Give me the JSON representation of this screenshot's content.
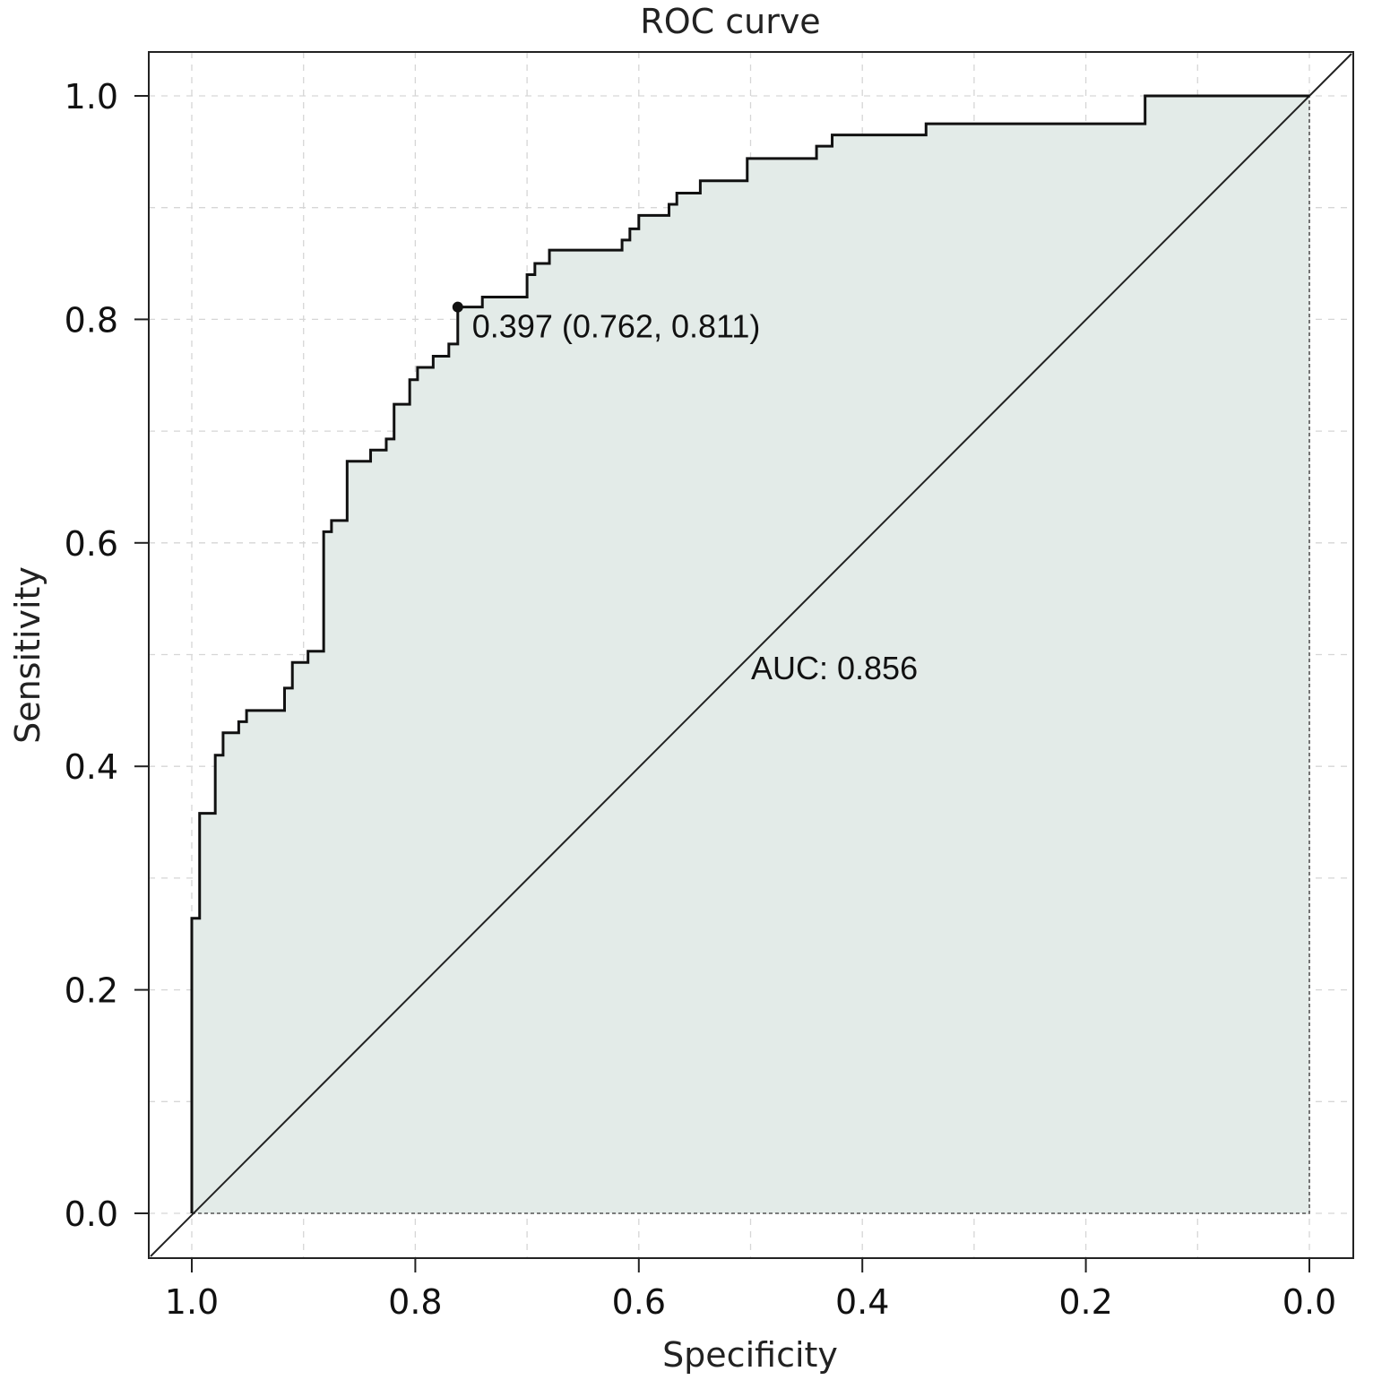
{
  "chart_data": {
    "type": "line",
    "title": "ROC curve",
    "xlabel": "Specificity",
    "ylabel": "Sensitivity",
    "xlim": [
      1.0,
      0.0
    ],
    "ylim": [
      0.0,
      1.0
    ],
    "x_reversed": true,
    "grid": true,
    "x_ticks": [
      "1.0",
      "0.8",
      "0.6",
      "0.4",
      "0.2",
      "0.0"
    ],
    "y_ticks": [
      "0.0",
      "0.2",
      "0.4",
      "0.6",
      "0.8",
      "1.0"
    ],
    "series": [
      {
        "points": [
          [
            1.0,
            0.0
          ],
          [
            1.0,
            0.264
          ],
          [
            0.993,
            0.264
          ],
          [
            0.993,
            0.358
          ],
          [
            0.979,
            0.358
          ],
          [
            0.979,
            0.41
          ],
          [
            0.972,
            0.41
          ],
          [
            0.972,
            0.43
          ],
          [
            0.958,
            0.43
          ],
          [
            0.958,
            0.44
          ],
          [
            0.951,
            0.44
          ],
          [
            0.951,
            0.45
          ],
          [
            0.917,
            0.45
          ],
          [
            0.917,
            0.47
          ],
          [
            0.91,
            0.47
          ],
          [
            0.91,
            0.493
          ],
          [
            0.896,
            0.493
          ],
          [
            0.896,
            0.503
          ],
          [
            0.882,
            0.503
          ],
          [
            0.882,
            0.61
          ],
          [
            0.875,
            0.61
          ],
          [
            0.875,
            0.62
          ],
          [
            0.861,
            0.62
          ],
          [
            0.861,
            0.673
          ],
          [
            0.84,
            0.673
          ],
          [
            0.84,
            0.683
          ],
          [
            0.826,
            0.683
          ],
          [
            0.826,
            0.693
          ],
          [
            0.819,
            0.693
          ],
          [
            0.819,
            0.724
          ],
          [
            0.805,
            0.724
          ],
          [
            0.805,
            0.746
          ],
          [
            0.798,
            0.746
          ],
          [
            0.798,
            0.757
          ],
          [
            0.784,
            0.757
          ],
          [
            0.784,
            0.767
          ],
          [
            0.77,
            0.767
          ],
          [
            0.77,
            0.778
          ],
          [
            0.762,
            0.778
          ],
          [
            0.762,
            0.811
          ],
          [
            0.74,
            0.811
          ],
          [
            0.74,
            0.82
          ],
          [
            0.7,
            0.82
          ],
          [
            0.7,
            0.84
          ],
          [
            0.693,
            0.84
          ],
          [
            0.693,
            0.85
          ],
          [
            0.68,
            0.85
          ],
          [
            0.68,
            0.862
          ],
          [
            0.615,
            0.862
          ],
          [
            0.615,
            0.871
          ],
          [
            0.608,
            0.871
          ],
          [
            0.608,
            0.881
          ],
          [
            0.6,
            0.881
          ],
          [
            0.6,
            0.893
          ],
          [
            0.573,
            0.893
          ],
          [
            0.573,
            0.903
          ],
          [
            0.566,
            0.903
          ],
          [
            0.566,
            0.913
          ],
          [
            0.545,
            0.913
          ],
          [
            0.545,
            0.924
          ],
          [
            0.503,
            0.924
          ],
          [
            0.503,
            0.944
          ],
          [
            0.441,
            0.944
          ],
          [
            0.441,
            0.955
          ],
          [
            0.427,
            0.955
          ],
          [
            0.427,
            0.965
          ],
          [
            0.343,
            0.965
          ],
          [
            0.343,
            0.975
          ],
          [
            0.147,
            0.975
          ],
          [
            0.147,
            1.0
          ],
          [
            0.0,
            1.0
          ]
        ]
      }
    ],
    "auc": "AUC: 0.856",
    "threshold": {
      "specificity": 0.762,
      "sensitivity": 0.811,
      "label": "0.397 (0.762, 0.811)"
    },
    "colors": {
      "fill": "#e3ebe8",
      "curve": "#111111",
      "grid": "#d6d6d6",
      "diagonal": "#222222"
    }
  }
}
